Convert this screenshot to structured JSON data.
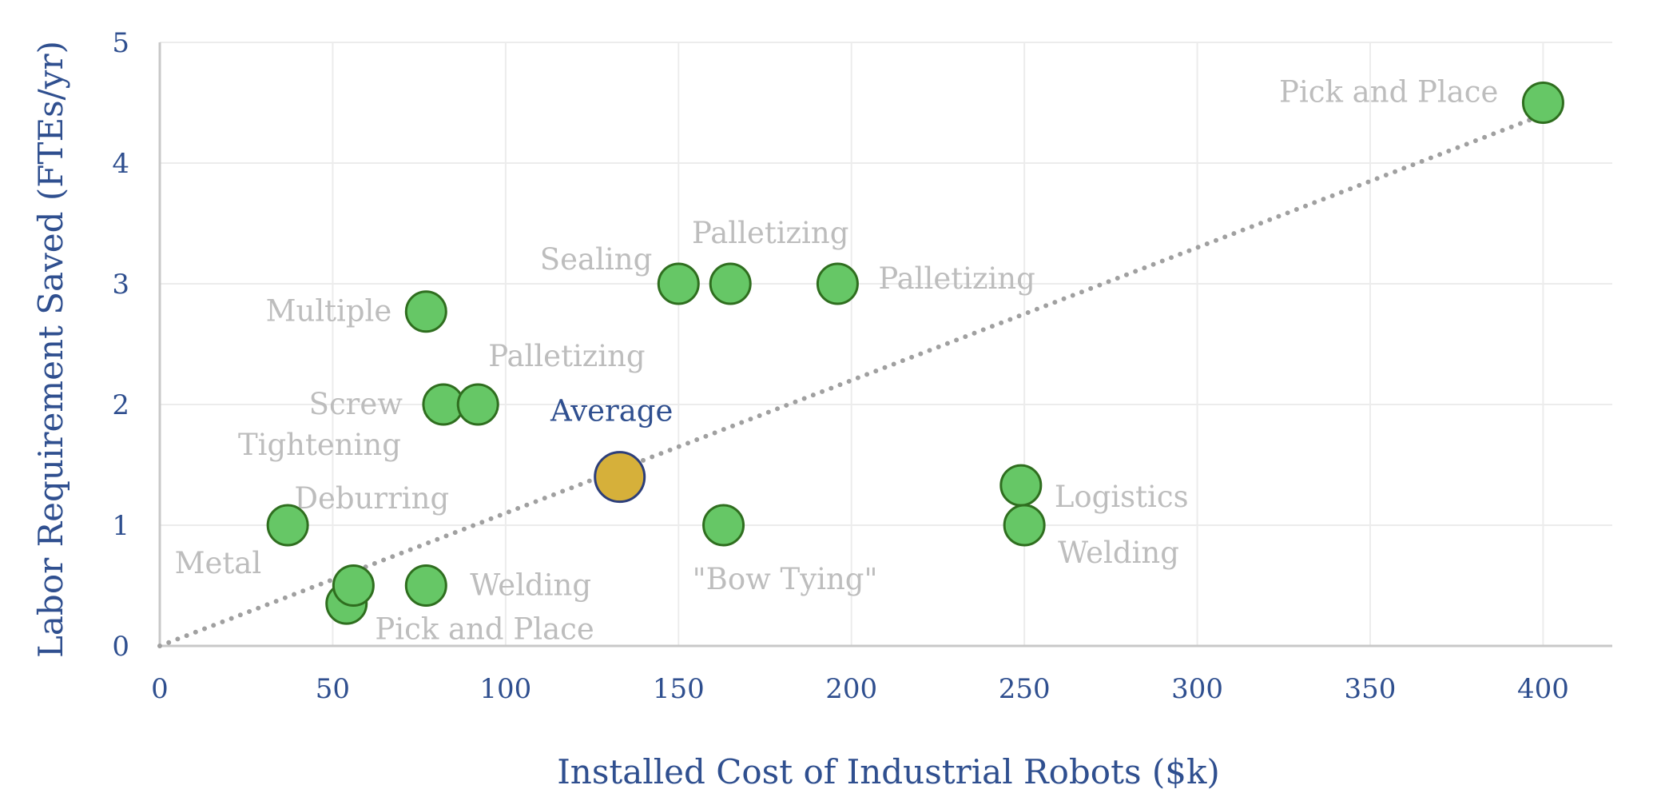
{
  "chart_data": {
    "type": "scatter",
    "title": "",
    "xlabel": "Installed Cost of Industrial Robots ($k)",
    "ylabel": "Labor Requirement Saved (FTEs/yr)",
    "xlim": [
      0,
      420
    ],
    "ylim": [
      0,
      5
    ],
    "xticks": [
      "0",
      "50",
      "100",
      "150",
      "200",
      "250",
      "300",
      "350",
      "400"
    ],
    "yticks": [
      "0",
      "1",
      "2",
      "3",
      "4",
      "5"
    ],
    "grid": true,
    "trendline": {
      "style": "dotted",
      "from": [
        0,
        0
      ],
      "to": [
        400,
        4.4
      ]
    },
    "colors": {
      "point": "#66c766",
      "point_edge": "#2f6e1f",
      "average": "#d6b03a",
      "average_edge": "#2c3e7a",
      "trendline": "#a0a0a0"
    },
    "points": [
      {
        "x": 37,
        "y": 1.0,
        "label": "Metal\nDeburring"
      },
      {
        "x": 54,
        "y": 0.35,
        "label": ""
      },
      {
        "x": 56,
        "y": 0.5,
        "label": "Pick and Place"
      },
      {
        "x": 77,
        "y": 0.5,
        "label": "Welding"
      },
      {
        "x": 77,
        "y": 2.77,
        "label": "Multiple"
      },
      {
        "x": 82,
        "y": 2.0,
        "label": "Screw\nTightening"
      },
      {
        "x": 92,
        "y": 2.0,
        "label": "Palletizing"
      },
      {
        "x": 150,
        "y": 3.0,
        "label": "Sealing"
      },
      {
        "x": 165,
        "y": 3.0,
        "label": "Palletizing"
      },
      {
        "x": 196,
        "y": 3.0,
        "label": "Palletizing"
      },
      {
        "x": 163,
        "y": 1.0,
        "label": "\"Bow Tying\""
      },
      {
        "x": 249,
        "y": 1.33,
        "label": "Logistics"
      },
      {
        "x": 250,
        "y": 1.0,
        "label": "Welding"
      },
      {
        "x": 400,
        "y": 4.5,
        "label": "Pick and Place"
      }
    ],
    "average": {
      "x": 133,
      "y": 1.4,
      "label": "Average"
    }
  }
}
